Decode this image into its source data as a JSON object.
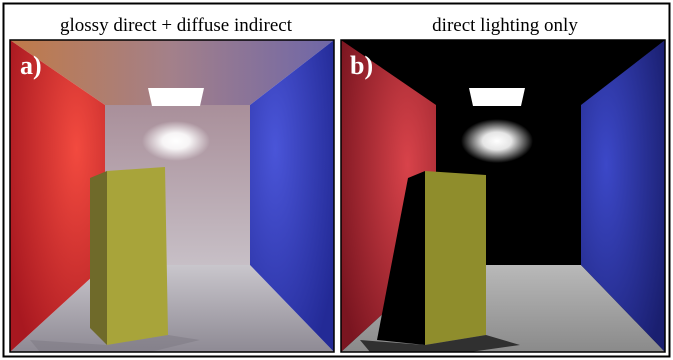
{
  "panels": [
    {
      "caption": "glossy direct + diffuse indirect",
      "label": "a)"
    },
    {
      "caption": "direct lighting only",
      "label": "b)"
    }
  ]
}
